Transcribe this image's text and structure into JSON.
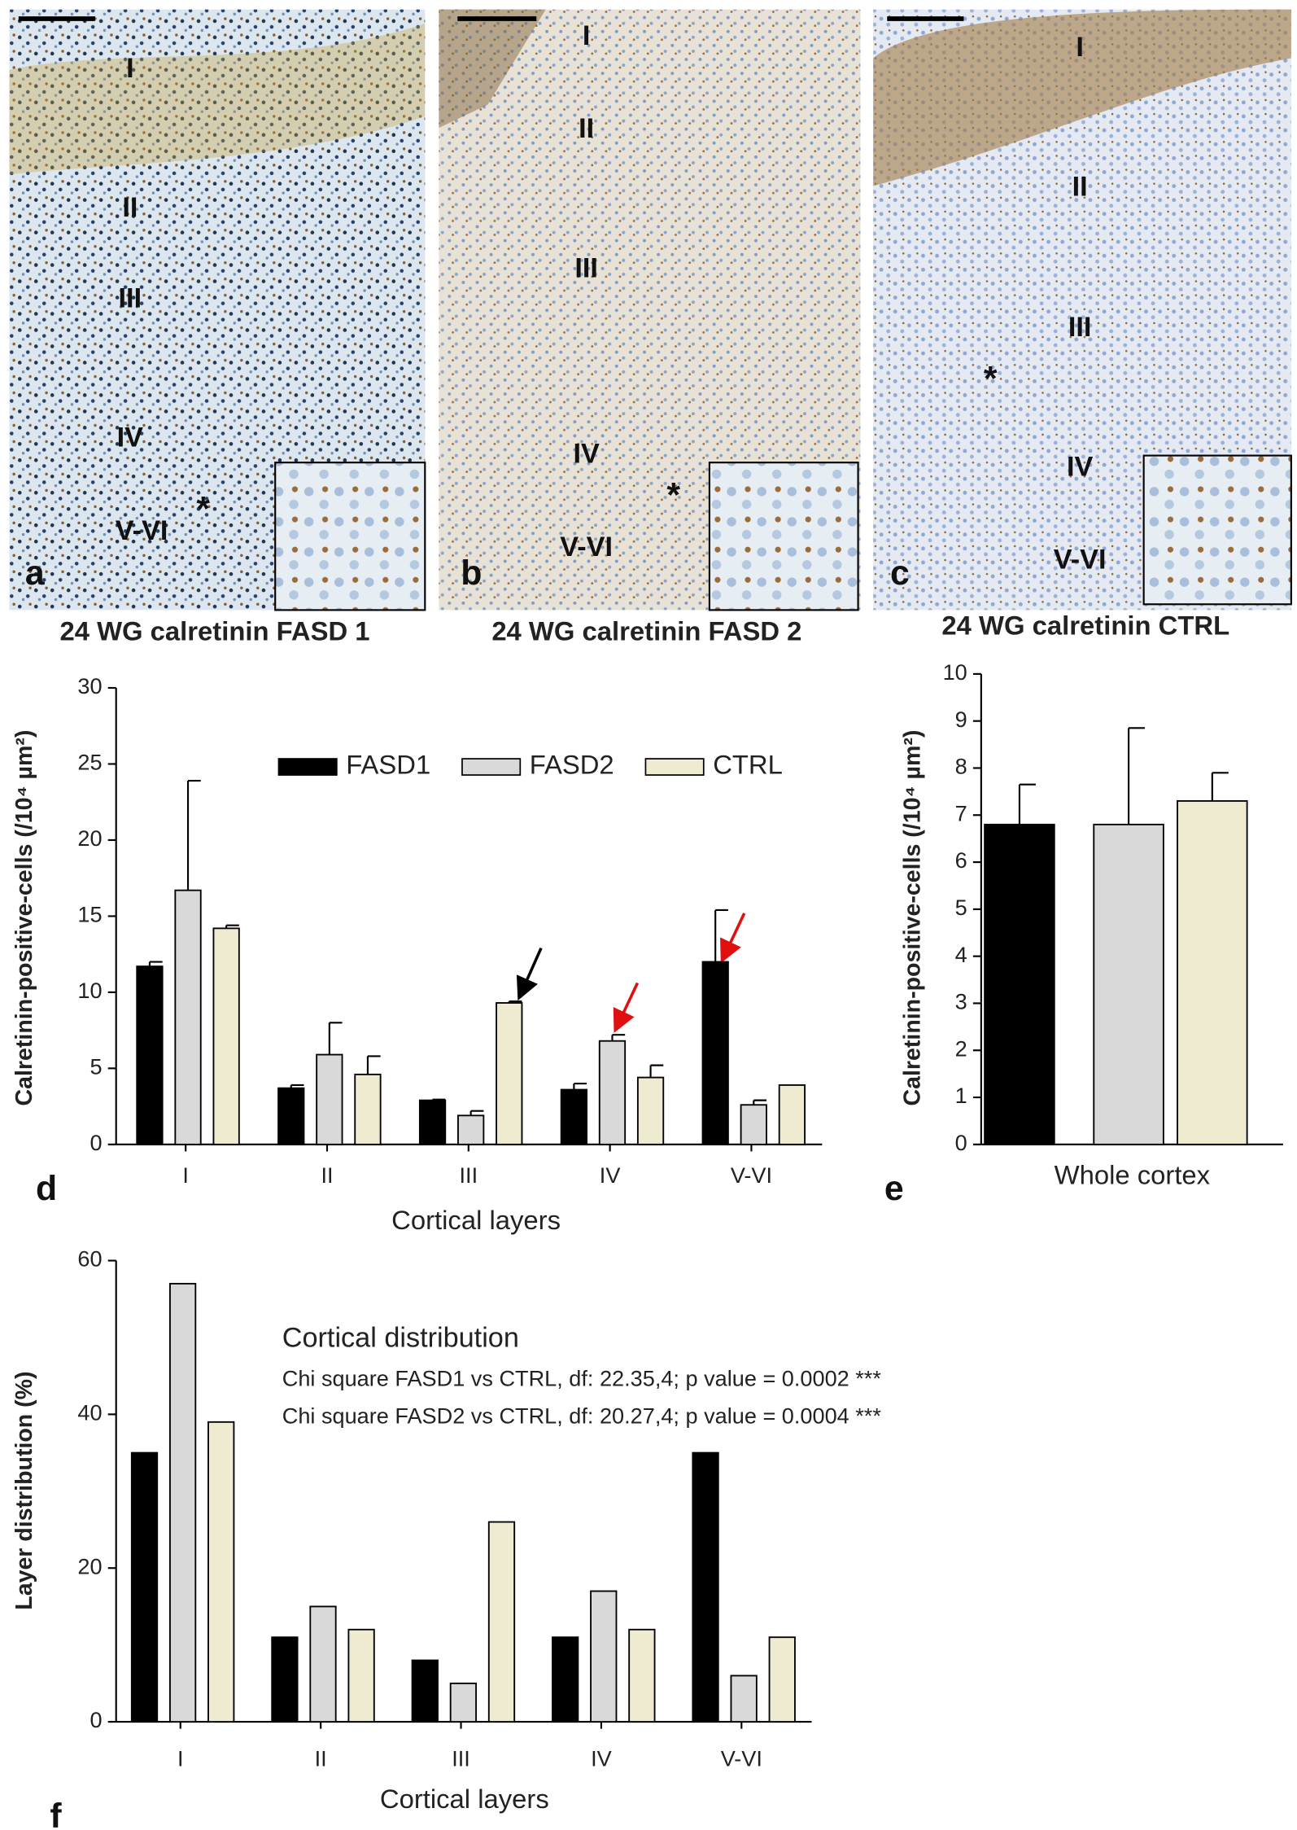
{
  "panels": [
    {
      "letter": "a",
      "caption": "24 WG calretinin FASD 1",
      "layers": [
        "I",
        "II",
        "III",
        "IV",
        "V-VI"
      ],
      "marker": "*"
    },
    {
      "letter": "b",
      "caption": "24 WG calretinin FASD 2",
      "layers": [
        "I",
        "II",
        "III",
        "IV",
        "V-VI"
      ],
      "marker": "*"
    },
    {
      "letter": "c",
      "caption": "24 WG calretinin CTRL",
      "layers": [
        "I",
        "II",
        "III",
        "IV",
        "V-VI"
      ],
      "marker": "*"
    }
  ],
  "chart_data": [
    {
      "type": "bar",
      "label": "d",
      "categories": [
        "I",
        "II",
        "III",
        "IV",
        "V-VI"
      ],
      "x_label": "Cortical layers",
      "y_label": "Calretinin-positive-cells (/10⁴ µm²)",
      "ylim": [
        0,
        30
      ],
      "yticks": [
        0,
        5,
        10,
        15,
        20,
        25,
        30
      ],
      "legend": true,
      "series": [
        {
          "name": "FASD1",
          "color": "#000000",
          "values": [
            11.7,
            3.7,
            2.9,
            3.6,
            12.0
          ],
          "errors": [
            0.3,
            0.2,
            0.05,
            0.4,
            3.4
          ]
        },
        {
          "name": "FASD2",
          "color": "#d9d9d9",
          "values": [
            16.7,
            5.9,
            1.9,
            6.8,
            2.6
          ],
          "errors": [
            7.2,
            2.1,
            0.3,
            0.4,
            0.3
          ]
        },
        {
          "name": "CTRL",
          "color": "#eeebd0",
          "values": [
            14.2,
            4.6,
            9.3,
            4.4,
            3.9
          ],
          "errors": [
            0.2,
            1.2,
            0.1,
            0.8,
            null
          ]
        }
      ]
    },
    {
      "type": "bar",
      "label": "e",
      "categories": [
        "Whole cortex"
      ],
      "y_label": "Calretinin-positive-cells (/10⁴ µm²)",
      "ylim": [
        0,
        10
      ],
      "yticks": [
        0,
        1,
        2,
        3,
        4,
        5,
        6,
        7,
        8,
        9,
        10
      ],
      "series": [
        {
          "color": "#000000",
          "values": [
            6.8
          ],
          "errors": [
            0.85
          ]
        },
        {
          "color": "#d9d9d9",
          "values": [
            6.8
          ],
          "errors": [
            2.05
          ]
        },
        {
          "color": "#eeebd0",
          "values": [
            7.3
          ],
          "errors": [
            0.6
          ]
        }
      ]
    },
    {
      "type": "bar",
      "label": "f",
      "categories": [
        "I",
        "II",
        "III",
        "IV",
        "V-VI"
      ],
      "x_label": "Cortical layers",
      "y_label": "Layer distribution (%)",
      "ylim": [
        0,
        60
      ],
      "yticks": [
        0,
        20,
        40,
        60
      ],
      "annotations": [
        "Cortical distribution",
        "Chi square FASD1 vs CTRL, df: 22.35,4; p value = 0.0002 ***",
        "Chi square FASD2 vs CTRL, df: 20.27,4; p value = 0.0004 ***"
      ],
      "series": [
        {
          "color": "#000000",
          "values": [
            35,
            11,
            8,
            11,
            35
          ]
        },
        {
          "color": "#d9d9d9",
          "values": [
            57,
            15,
            5,
            17,
            6
          ]
        },
        {
          "color": "#eeebd0",
          "values": [
            39,
            12,
            26,
            12,
            11
          ]
        }
      ]
    }
  ]
}
